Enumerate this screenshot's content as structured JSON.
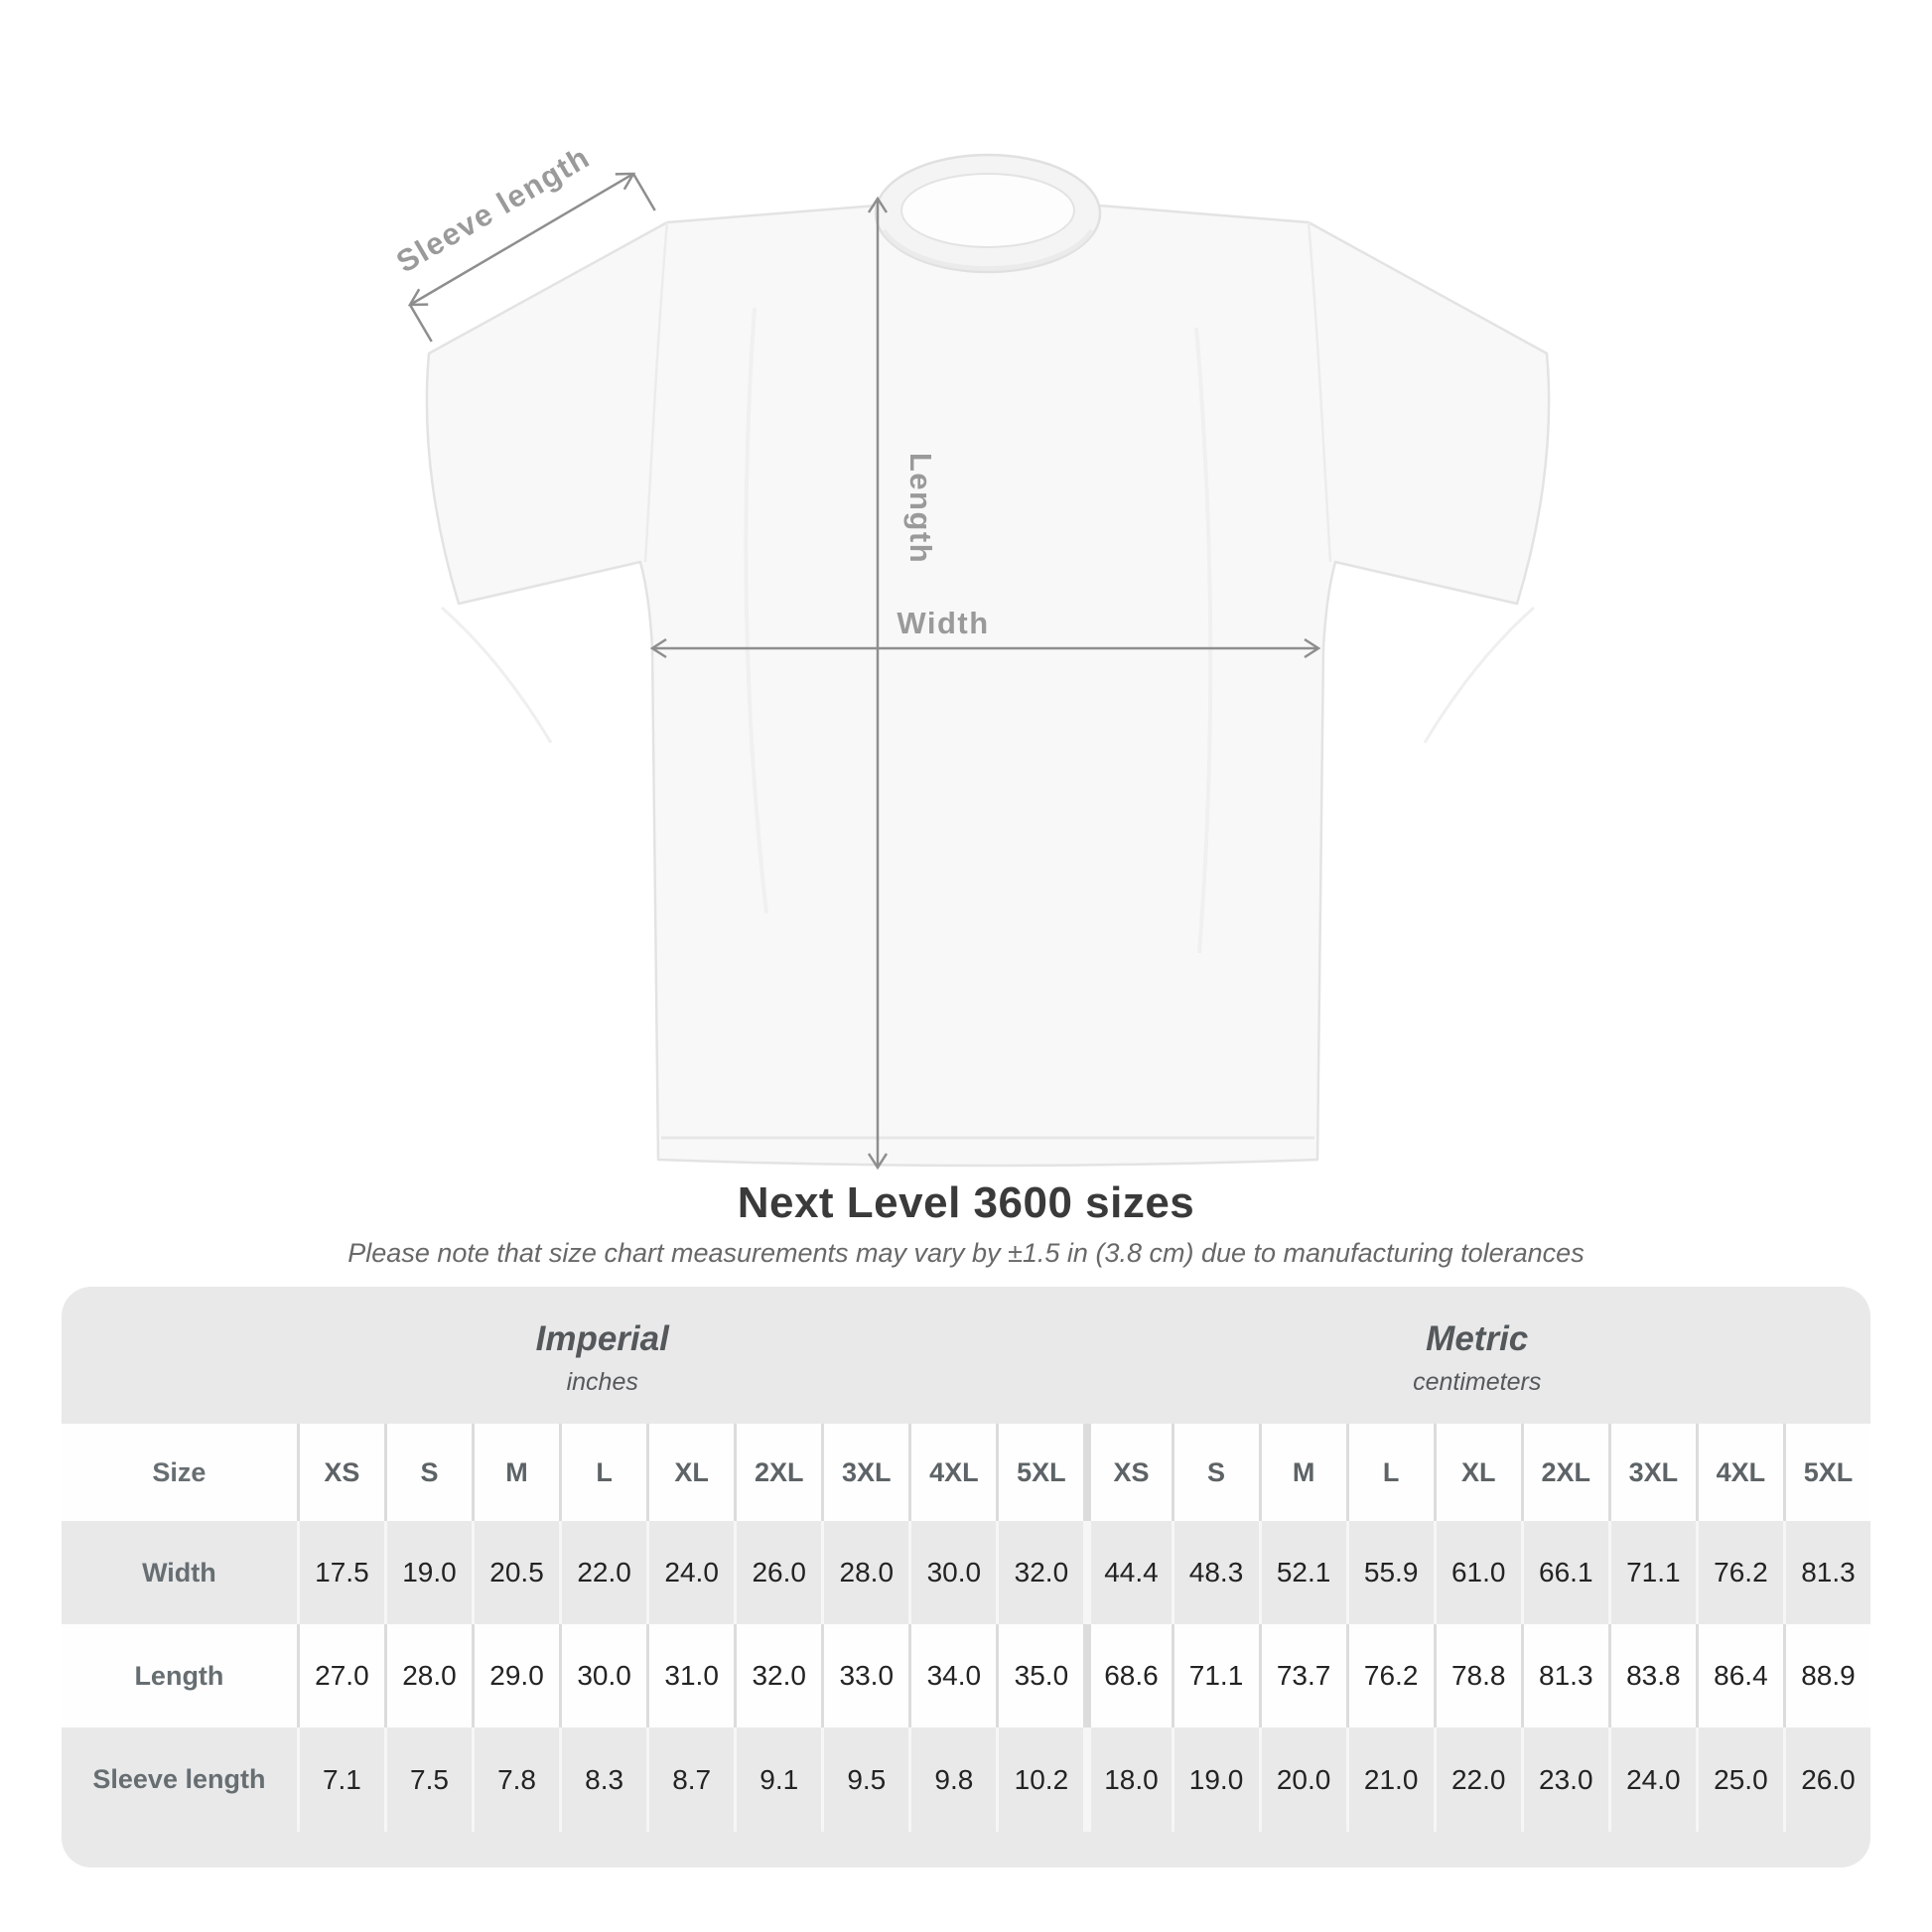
{
  "diagram": {
    "sleeve_label": "Sleeve length",
    "length_label": "Length",
    "width_label": "Width"
  },
  "title": "Next Level 3600 sizes",
  "subtitle": "Please note that size chart measurements may vary by ±1.5 in (3.8 cm) due to manufacturing tolerances",
  "table": {
    "groups": [
      {
        "label": "Imperial",
        "sublabel": "inches"
      },
      {
        "label": "Metric",
        "sublabel": "centimeters"
      }
    ],
    "size_header": "Size",
    "sizes": [
      "XS",
      "S",
      "M",
      "L",
      "XL",
      "2XL",
      "3XL",
      "4XL",
      "5XL"
    ],
    "rows": [
      {
        "key": "width",
        "label": "Width",
        "imperial": [
          "17.5",
          "19.0",
          "20.5",
          "22.0",
          "24.0",
          "26.0",
          "28.0",
          "30.0",
          "32.0"
        ],
        "metric": [
          "44.4",
          "48.3",
          "52.1",
          "55.9",
          "61.0",
          "66.1",
          "71.1",
          "76.2",
          "81.3"
        ]
      },
      {
        "key": "length",
        "label": "Length",
        "imperial": [
          "27.0",
          "28.0",
          "29.0",
          "30.0",
          "31.0",
          "32.0",
          "33.0",
          "34.0",
          "35.0"
        ],
        "metric": [
          "68.6",
          "71.1",
          "73.7",
          "76.2",
          "78.8",
          "81.3",
          "83.8",
          "86.4",
          "88.9"
        ]
      },
      {
        "key": "sleeve-length",
        "label": "Sleeve length",
        "imperial": [
          "7.1",
          "7.5",
          "7.8",
          "8.3",
          "8.7",
          "9.1",
          "9.5",
          "9.8",
          "10.2"
        ],
        "metric": [
          "18.0",
          "19.0",
          "20.0",
          "21.0",
          "22.0",
          "23.0",
          "24.0",
          "25.0",
          "26.0"
        ]
      }
    ]
  },
  "colors": {
    "page_bg": "#ffffff",
    "table_bg": "#e9e9ea",
    "row_white": "#fefefe",
    "separator_on_white": "#dcdcdc",
    "separator_on_gray": "#f6f6f7",
    "value_text": "#232323",
    "header_text": "#5d6366",
    "group_heading_text": "#54585a",
    "title_text": "#3a3a3a",
    "subtitle_text": "#686868",
    "dimension_line": "#8e8e8e",
    "dimension_label": "#9a9a9a",
    "shirt_fill": "#f8f8f8",
    "shirt_outline": "#e3e3e3"
  },
  "chart_data": {
    "type": "table",
    "title": "Next Level 3600 sizes",
    "note": "Please note that size chart measurements may vary by ±1.5 in (3.8 cm) due to manufacturing tolerances",
    "unit_groups": [
      "Imperial (inches)",
      "Metric (centimeters)"
    ],
    "sizes": [
      "XS",
      "S",
      "M",
      "L",
      "XL",
      "2XL",
      "3XL",
      "4XL",
      "5XL"
    ],
    "rows": [
      {
        "measure": "Width",
        "imperial_in": [
          17.5,
          19.0,
          20.5,
          22.0,
          24.0,
          26.0,
          28.0,
          30.0,
          32.0
        ],
        "metric_cm": [
          44.4,
          48.3,
          52.1,
          55.9,
          61.0,
          66.1,
          71.1,
          76.2,
          81.3
        ]
      },
      {
        "measure": "Length",
        "imperial_in": [
          27.0,
          28.0,
          29.0,
          30.0,
          31.0,
          32.0,
          33.0,
          34.0,
          35.0
        ],
        "metric_cm": [
          68.6,
          71.1,
          73.7,
          76.2,
          78.8,
          81.3,
          83.8,
          86.4,
          88.9
        ]
      },
      {
        "measure": "Sleeve length",
        "imperial_in": [
          7.1,
          7.5,
          7.8,
          8.3,
          8.7,
          9.1,
          9.5,
          9.8,
          10.2
        ],
        "metric_cm": [
          18.0,
          19.0,
          20.0,
          21.0,
          22.0,
          23.0,
          24.0,
          25.0,
          26.0
        ]
      }
    ]
  }
}
